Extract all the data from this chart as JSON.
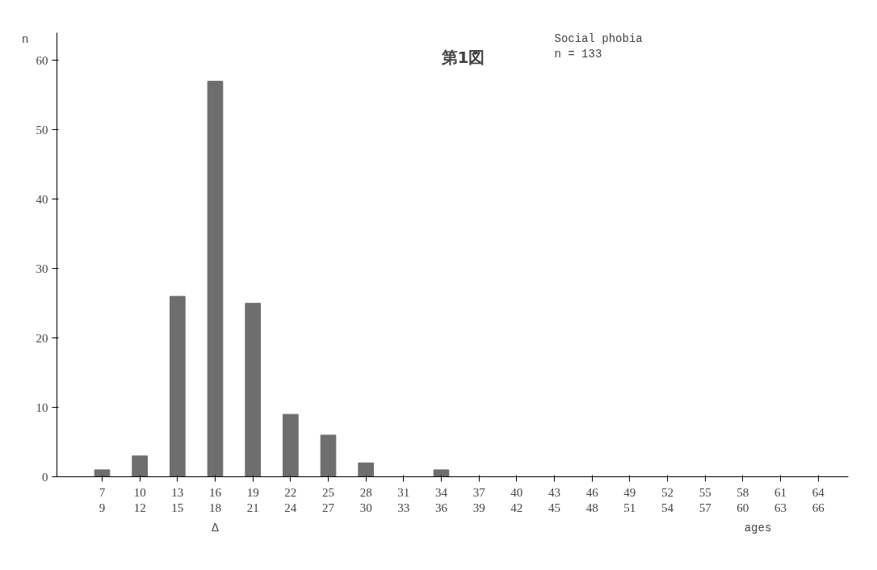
{
  "chart_data": {
    "type": "bar",
    "title": "第1図",
    "xlabel": "ages",
    "ylabel": "n",
    "categories": [
      "7\n9",
      "10\n12",
      "13\n15",
      "16\n18",
      "19\n21",
      "22\n24",
      "25\n27",
      "28\n30",
      "31\n33",
      "34\n36",
      "37\n39",
      "40\n42",
      "43\n45",
      "46\n48",
      "49\n51",
      "52\n54",
      "55\n57",
      "58\n60",
      "61\n63",
      "64\n66"
    ],
    "values": [
      1,
      3,
      26,
      57,
      25,
      9,
      6,
      2,
      0,
      1,
      0,
      0,
      0,
      0,
      0,
      0,
      0,
      0,
      0,
      0
    ],
    "color": "#6e6e6e",
    "ylim": [
      0,
      64
    ],
    "yticks": [
      0,
      10,
      20,
      30,
      40,
      50,
      60
    ],
    "annotations": [
      "Social phobia\n   n = 133",
      "Δ"
    ]
  }
}
